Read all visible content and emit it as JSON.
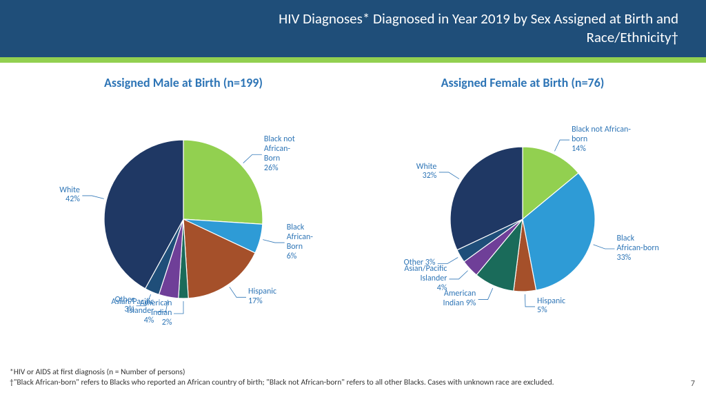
{
  "header": {
    "title_line1": "HIV Diagnoses* Diagnosed in Year 2019 by Sex Assigned at Birth and",
    "title_line2": "Race/Ethnicity†"
  },
  "colors": {
    "header_bg": "#1f4e79",
    "accent": "#92d050",
    "title_text": "#2e75b6",
    "label_text": "#2e75b6",
    "footnote_text": "#333333"
  },
  "charts": [
    {
      "title": "Assigned Male at Birth (n=199)",
      "radius": 115,
      "start_angle_deg": -90,
      "slices": [
        {
          "label": "Black not\nAfrican-\nBorn\n26%",
          "value": 26,
          "color": "#92d050"
        },
        {
          "label": "Black\nAfrican-\nBorn\n6%",
          "value": 6,
          "color": "#2e9bd6"
        },
        {
          "label": "Hispanic\n17%",
          "value": 17,
          "color": "#a5502a"
        },
        {
          "label": "American\nIndian\n2%",
          "value": 2,
          "color": "#1a6b5a"
        },
        {
          "label": "Asian/Pacific\nIslander\n4%",
          "value": 4,
          "color": "#6f3f98"
        },
        {
          "label": "Other\n3%",
          "value": 3,
          "color": "#1f4e79"
        },
        {
          "label": "White\n42%",
          "value": 42,
          "color": "#1f3864"
        }
      ]
    },
    {
      "title": "Assigned Female at Birth (n=76)",
      "radius": 105,
      "start_angle_deg": -90,
      "slices": [
        {
          "label": "Black not African-\nborn\n14%",
          "value": 14,
          "color": "#92d050"
        },
        {
          "label": "Black\nAfrican-born\n33%",
          "value": 33,
          "color": "#2e9bd6"
        },
        {
          "label": "Hispanic\n5%",
          "value": 5,
          "color": "#a5502a"
        },
        {
          "label": "American\nIndian 9%",
          "value": 9,
          "color": "#1a6b5a"
        },
        {
          "label": "Asian/Pacific\nIslander\n4%",
          "value": 4,
          "color": "#6f3f98"
        },
        {
          "label": "Other 3%",
          "value": 3,
          "color": "#1f4e79"
        },
        {
          "label": "White\n32%",
          "value": 32,
          "color": "#1f3864"
        }
      ]
    }
  ],
  "footnotes": {
    "line1": "*HIV or AIDS at first diagnosis  (n = Number of persons)",
    "line2": "†\"Black African-born\" refers to Blacks who reported an African country of birth; \"Black not African-born\" refers to all other Blacks.  Cases with unknown race are excluded."
  },
  "page_number": "7"
}
